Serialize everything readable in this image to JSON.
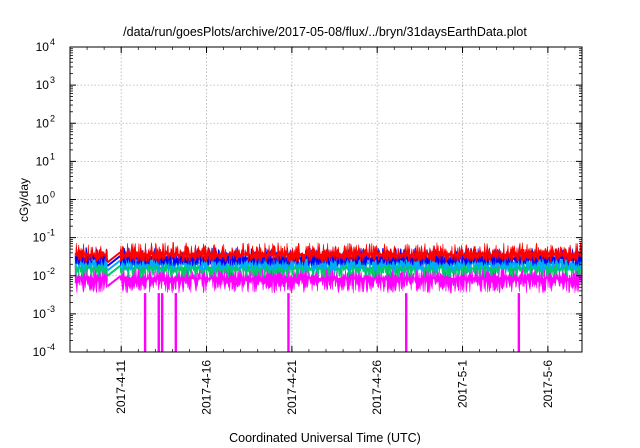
{
  "chart_data": {
    "type": "line",
    "title": "/data/run/goesPlots/archive/2017-05-08/flux/../bryn/31daysEarthData.plot",
    "xlabel": "Coordinated Universal Time (UTC)",
    "ylabel": "cGy/day",
    "yscale": "log",
    "ylim_exponents": [
      -4,
      4
    ],
    "y_tick_labels": [
      {
        "base": "10",
        "exp": "-4"
      },
      {
        "base": "10",
        "exp": "-3"
      },
      {
        "base": "10",
        "exp": "-2"
      },
      {
        "base": "10",
        "exp": "-1"
      },
      {
        "base": "10",
        "exp": "0"
      },
      {
        "base": "10",
        "exp": "1"
      },
      {
        "base": "10",
        "exp": "2"
      },
      {
        "base": "10",
        "exp": "3"
      },
      {
        "base": "10",
        "exp": "4"
      }
    ],
    "x_tick_labels": [
      "2017-4-11",
      "2017-4-16",
      "2017-4-21",
      "2017-4-26",
      "2017-5-1",
      "2017-5-6"
    ],
    "xlim": [
      "2017-04-08",
      "2017-05-08"
    ],
    "grid": true,
    "series": [
      {
        "color": "#ff0000",
        "median": 0.036,
        "spike_max": 0.075,
        "low_min": 0.022
      },
      {
        "color": "#0000ff",
        "median": 0.029,
        "spike_max": 0.055,
        "low_min": 0.018
      },
      {
        "color": "#00aaff",
        "median": 0.022,
        "spike_max": 0.042,
        "low_min": 0.013
      },
      {
        "color": "#00cc66",
        "median": 0.016,
        "spike_max": 0.03,
        "low_min": 0.009
      },
      {
        "color": "#ff00ff",
        "median": 0.0085,
        "spike_max": 0.022,
        "low_min": 0.0035,
        "dropouts_to": 0.0001
      }
    ],
    "data_gap": {
      "start": "2017-04-10.2",
      "end": "2017-04-10.9"
    },
    "dropout_days": [
      12.4,
      13.2,
      13.4,
      14.2,
      20.8,
      27.7,
      34.3
    ]
  }
}
